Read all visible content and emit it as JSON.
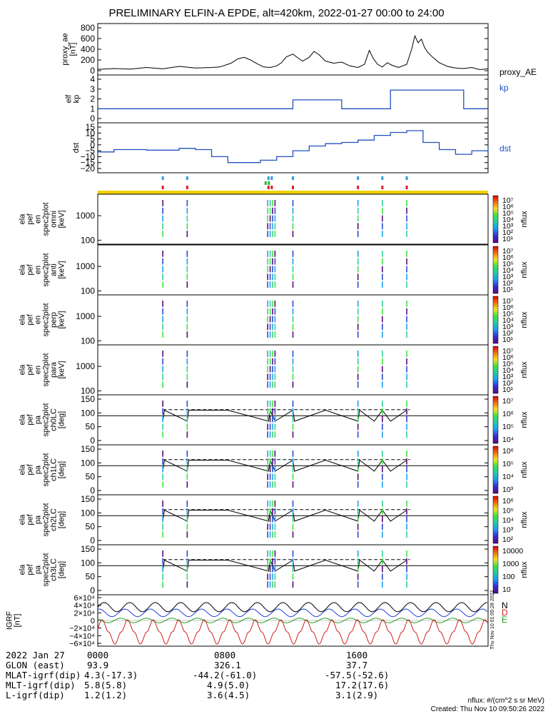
{
  "title": "PRELIMINARY ELFIN-A EPDE, alt=420km, 2022-01-27 00:00 to 24:00",
  "panels": {
    "ae": {
      "ylabel_lines": [
        "proxy_ae",
        "[nT]"
      ],
      "legend": "proxy_AE",
      "yticks": [
        "800",
        "600",
        "400",
        "200",
        "0"
      ]
    },
    "kp": {
      "ylabel_lines": [
        "elf",
        "kp"
      ],
      "legend": "kp",
      "yticks": [
        "4",
        "3",
        "2",
        "1",
        "0"
      ]
    },
    "dst": {
      "ylabel_lines": [
        "dst"
      ],
      "legend": "dst",
      "yticks": [
        "15",
        "10",
        "5",
        "0",
        "−5",
        "−10",
        "−15",
        "−20"
      ]
    },
    "spec_en": [
      {
        "ylabel_lines": [
          "ela",
          "pef",
          "en",
          "spec2plot",
          "omni",
          "[keV]"
        ],
        "yticks": [
          "1000",
          "100"
        ],
        "cbar": [
          "10⁷",
          "10⁶",
          "10⁵",
          "10⁴",
          "10³",
          "10²",
          "10¹"
        ],
        "cbar_label": "nflux"
      },
      {
        "ylabel_lines": [
          "ela",
          "pef",
          "en",
          "spec2plot",
          "anti",
          "[keV]"
        ],
        "yticks": [
          "1000",
          "100"
        ],
        "cbar": [
          "10⁷",
          "10⁶",
          "10⁵",
          "10⁴",
          "10³",
          "10²",
          "10¹"
        ],
        "cbar_label": "nflux"
      },
      {
        "ylabel_lines": [
          "ela",
          "pef",
          "en",
          "spec2plot",
          "perp",
          "[keV]"
        ],
        "yticks": [
          "1000",
          "100"
        ],
        "cbar": [
          "10⁷",
          "10⁶",
          "10⁵",
          "10⁴",
          "10³",
          "10²",
          "10¹"
        ],
        "cbar_label": "nflux"
      },
      {
        "ylabel_lines": [
          "ela",
          "pef",
          "en",
          "spec2plot",
          "para",
          "[keV]"
        ],
        "yticks": [
          "1000",
          "100"
        ],
        "cbar": [
          "10⁷",
          "10⁶",
          "10⁵",
          "10⁴",
          "10³",
          "10²",
          "10¹"
        ],
        "cbar_label": "nflux"
      }
    ],
    "spec_pa": [
      {
        "ylabel_lines": [
          "ela",
          "pef",
          "pa",
          "spec2plot",
          "ch0LC",
          "[deg]"
        ],
        "yticks": [
          "150",
          "100",
          "50",
          "0"
        ],
        "cbar": [
          "10⁷",
          "10⁶",
          "10⁵",
          "10⁴"
        ],
        "cbar_label": "nflux"
      },
      {
        "ylabel_lines": [
          "ela",
          "pef",
          "pa",
          "spec2plot",
          "ch1LC",
          "[deg]"
        ],
        "yticks": [
          "150",
          "100",
          "50",
          "0"
        ],
        "cbar": [
          "10⁶",
          "10⁵",
          "10⁴",
          "10³"
        ],
        "cbar_label": "nflux"
      },
      {
        "ylabel_lines": [
          "ela",
          "pef",
          "pa",
          "spec2plot",
          "ch2LC",
          "[deg]"
        ],
        "yticks": [
          "150",
          "100",
          "50",
          "0"
        ],
        "cbar": [
          "10⁶",
          "10⁵",
          "10⁴",
          "10³",
          "10²"
        ],
        "cbar_label": "nflux"
      },
      {
        "ylabel_lines": [
          "ela",
          "pef",
          "pa",
          "spec2plot",
          "ch3LC",
          "[deg]"
        ],
        "yticks": [
          "150",
          "100",
          "50",
          "0"
        ],
        "cbar": [
          "10000",
          "1000",
          "100",
          "10"
        ],
        "cbar_label": "nflux"
      }
    ],
    "igrf": {
      "ylabel_lines": [
        "IGRF",
        "[nT]"
      ],
      "yticks": [
        "6×10⁴",
        "4×10⁴",
        "2×10⁴",
        "0",
        "−2×10⁴",
        "−4×10⁴",
        "−6×10⁴"
      ],
      "legend": [
        "N",
        "D",
        "E"
      ],
      "side_label": "Thu Nov 10 01:05:28 2022"
    }
  },
  "chart_data": {
    "type": "line",
    "x_range_hours": [
      0,
      24
    ],
    "series_colors": {
      "ae": "#000000",
      "kp": "#2050c0",
      "dst": "#2050c0",
      "igrf_n": "#000000",
      "igrf_d": "#d02020",
      "igrf_e": "#20a020",
      "igrf_f": "#2040d0"
    },
    "proxy_ae": {
      "ylim": [
        0,
        800
      ],
      "points": [
        [
          0,
          25
        ],
        [
          1,
          40
        ],
        [
          2,
          30
        ],
        [
          3,
          60
        ],
        [
          4,
          35
        ],
        [
          5,
          80
        ],
        [
          6,
          50
        ],
        [
          7,
          60
        ],
        [
          7.5,
          70
        ],
        [
          8.2,
          140
        ],
        [
          8.6,
          220
        ],
        [
          9.0,
          250
        ],
        [
          9.4,
          200
        ],
        [
          9.8,
          130
        ],
        [
          10.2,
          70
        ],
        [
          10.6,
          60
        ],
        [
          11,
          90
        ],
        [
          11.3,
          150
        ],
        [
          11.6,
          260
        ],
        [
          12,
          310
        ],
        [
          12.3,
          240
        ],
        [
          12.6,
          180
        ],
        [
          13,
          250
        ],
        [
          13.3,
          360
        ],
        [
          13.6,
          300
        ],
        [
          14,
          180
        ],
        [
          14.5,
          140
        ],
        [
          15,
          160
        ],
        [
          15.5,
          90
        ],
        [
          16,
          60
        ],
        [
          16.4,
          120
        ],
        [
          16.7,
          380
        ],
        [
          16.9,
          250
        ],
        [
          17.2,
          120
        ],
        [
          17.5,
          70
        ],
        [
          17.8,
          150
        ],
        [
          18.1,
          100
        ],
        [
          18.5,
          60
        ],
        [
          19,
          120
        ],
        [
          19.3,
          400
        ],
        [
          19.5,
          650
        ],
        [
          19.7,
          520
        ],
        [
          19.9,
          590
        ],
        [
          20.1,
          430
        ],
        [
          20.3,
          340
        ],
        [
          20.6,
          250
        ],
        [
          21,
          150
        ],
        [
          21.5,
          80
        ],
        [
          22,
          50
        ],
        [
          22.5,
          40
        ],
        [
          23,
          60
        ],
        [
          23.5,
          20
        ],
        [
          24,
          35
        ]
      ]
    },
    "kp": {
      "ylim": [
        0,
        4
      ],
      "steps": [
        [
          0,
          1
        ],
        [
          9,
          1
        ],
        [
          12,
          1.9
        ],
        [
          15,
          1
        ],
        [
          18,
          2.9
        ],
        [
          21,
          2.9
        ],
        [
          22.5,
          1
        ],
        [
          24,
          1
        ]
      ]
    },
    "dst": {
      "ylim": [
        -20,
        15
      ],
      "steps": [
        [
          0,
          -6
        ],
        [
          1,
          -4
        ],
        [
          3,
          -4.5
        ],
        [
          5,
          -3
        ],
        [
          6,
          -4
        ],
        [
          7,
          -10
        ],
        [
          8,
          -15
        ],
        [
          10,
          -13
        ],
        [
          11,
          -10
        ],
        [
          12,
          -5
        ],
        [
          13,
          -1
        ],
        [
          14,
          1
        ],
        [
          15,
          2
        ],
        [
          16,
          4
        ],
        [
          17,
          8
        ],
        [
          18,
          10.5
        ],
        [
          19,
          12
        ],
        [
          20,
          2
        ],
        [
          21,
          -4
        ],
        [
          22,
          -8
        ],
        [
          23,
          -5
        ],
        [
          24,
          -2
        ]
      ]
    },
    "pa_lc": {
      "ylim": [
        0,
        150
      ],
      "lc_mean": 90,
      "alc_dashed": 112
    },
    "pass_markers_hours": [
      4,
      5.5,
      10.5,
      10.7,
      12,
      16,
      17.5,
      19
    ],
    "igrf": {
      "ylim": [
        -60000,
        60000
      ]
    }
  },
  "footer": {
    "rows": [
      [
        "2022 Jan 27",
        "0000",
        "0800",
        "1600"
      ],
      [
        "GLON (east)",
        "93.9",
        "326.1",
        "37.7"
      ],
      [
        "MLAT-igrf(dip)",
        "4.3(-17.3)",
        "-44.2(-61.0)",
        "-57.5(-52.6)"
      ],
      [
        "MLT-igrf(dip)",
        "5.8(5.8)",
        "4.9(5.0)",
        "17.2(17.6)"
      ],
      [
        "L-igrf(dip)",
        "1.2(1.2)",
        "3.6(4.5)",
        "3.1(2.9)"
      ]
    ],
    "units": "nflux: #/(cm^2 s sr MeV)",
    "created": "Created: Thu Nov 10 09:50:26 2022"
  }
}
